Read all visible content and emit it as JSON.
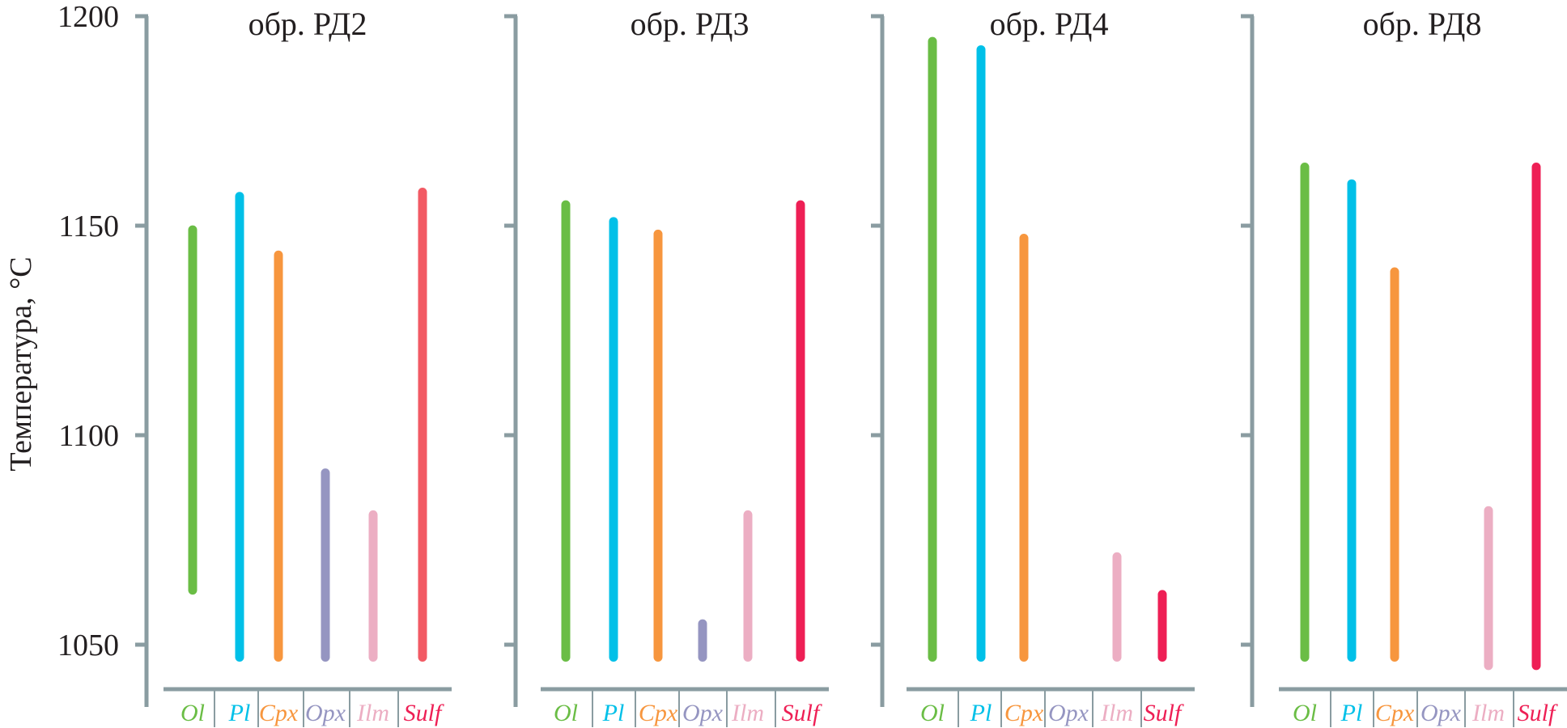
{
  "chart_data": {
    "type": "range-bar",
    "ylabel": "Температура, °C",
    "yticks": [
      1050,
      1100,
      1150,
      1200
    ],
    "ylim": [
      1043,
      1200
    ],
    "categories": [
      "Ol",
      "Pl",
      "Cpx",
      "Opx",
      "Ilm",
      "Sulf"
    ],
    "colors": {
      "Ol": "#6abd45",
      "Pl": "#00c0e8",
      "Cpx": "#f7963e",
      "Opx": "#9595c1",
      "Ilm": "#ecaec3",
      "Sulf": "#ee1f55",
      "axis": "#8a9ca1"
    },
    "panels": [
      {
        "title": "обр. РД2",
        "ranges": {
          "Ol": [
            1063,
            1149
          ],
          "Pl": [
            1047,
            1157
          ],
          "Cpx": [
            1047,
            1143
          ],
          "Opx": [
            1047,
            1091
          ],
          "Ilm": [
            1047,
            1081
          ],
          "Sulf": [
            1047,
            1158
          ]
        },
        "sulf_color": "#f25a64"
      },
      {
        "title": "обр. РД3",
        "ranges": {
          "Ol": [
            1047,
            1155
          ],
          "Pl": [
            1047,
            1151
          ],
          "Cpx": [
            1047,
            1148
          ],
          "Opx": [
            1047,
            1055
          ],
          "Ilm": [
            1047,
            1081
          ],
          "Sulf": [
            1047,
            1155
          ]
        }
      },
      {
        "title": "обр. РД4",
        "ranges": {
          "Ol": [
            1047,
            1194
          ],
          "Pl": [
            1047,
            1192
          ],
          "Cpx": [
            1047,
            1147
          ],
          "Ilm": [
            1047,
            1071
          ],
          "Sulf": [
            1047,
            1062
          ]
        }
      },
      {
        "title": "обр. РД8",
        "ranges": {
          "Ol": [
            1047,
            1164
          ],
          "Pl": [
            1047,
            1160
          ],
          "Cpx": [
            1047,
            1139
          ],
          "Ilm": [
            1045,
            1082
          ],
          "Sulf": [
            1045,
            1164
          ]
        }
      }
    ]
  }
}
